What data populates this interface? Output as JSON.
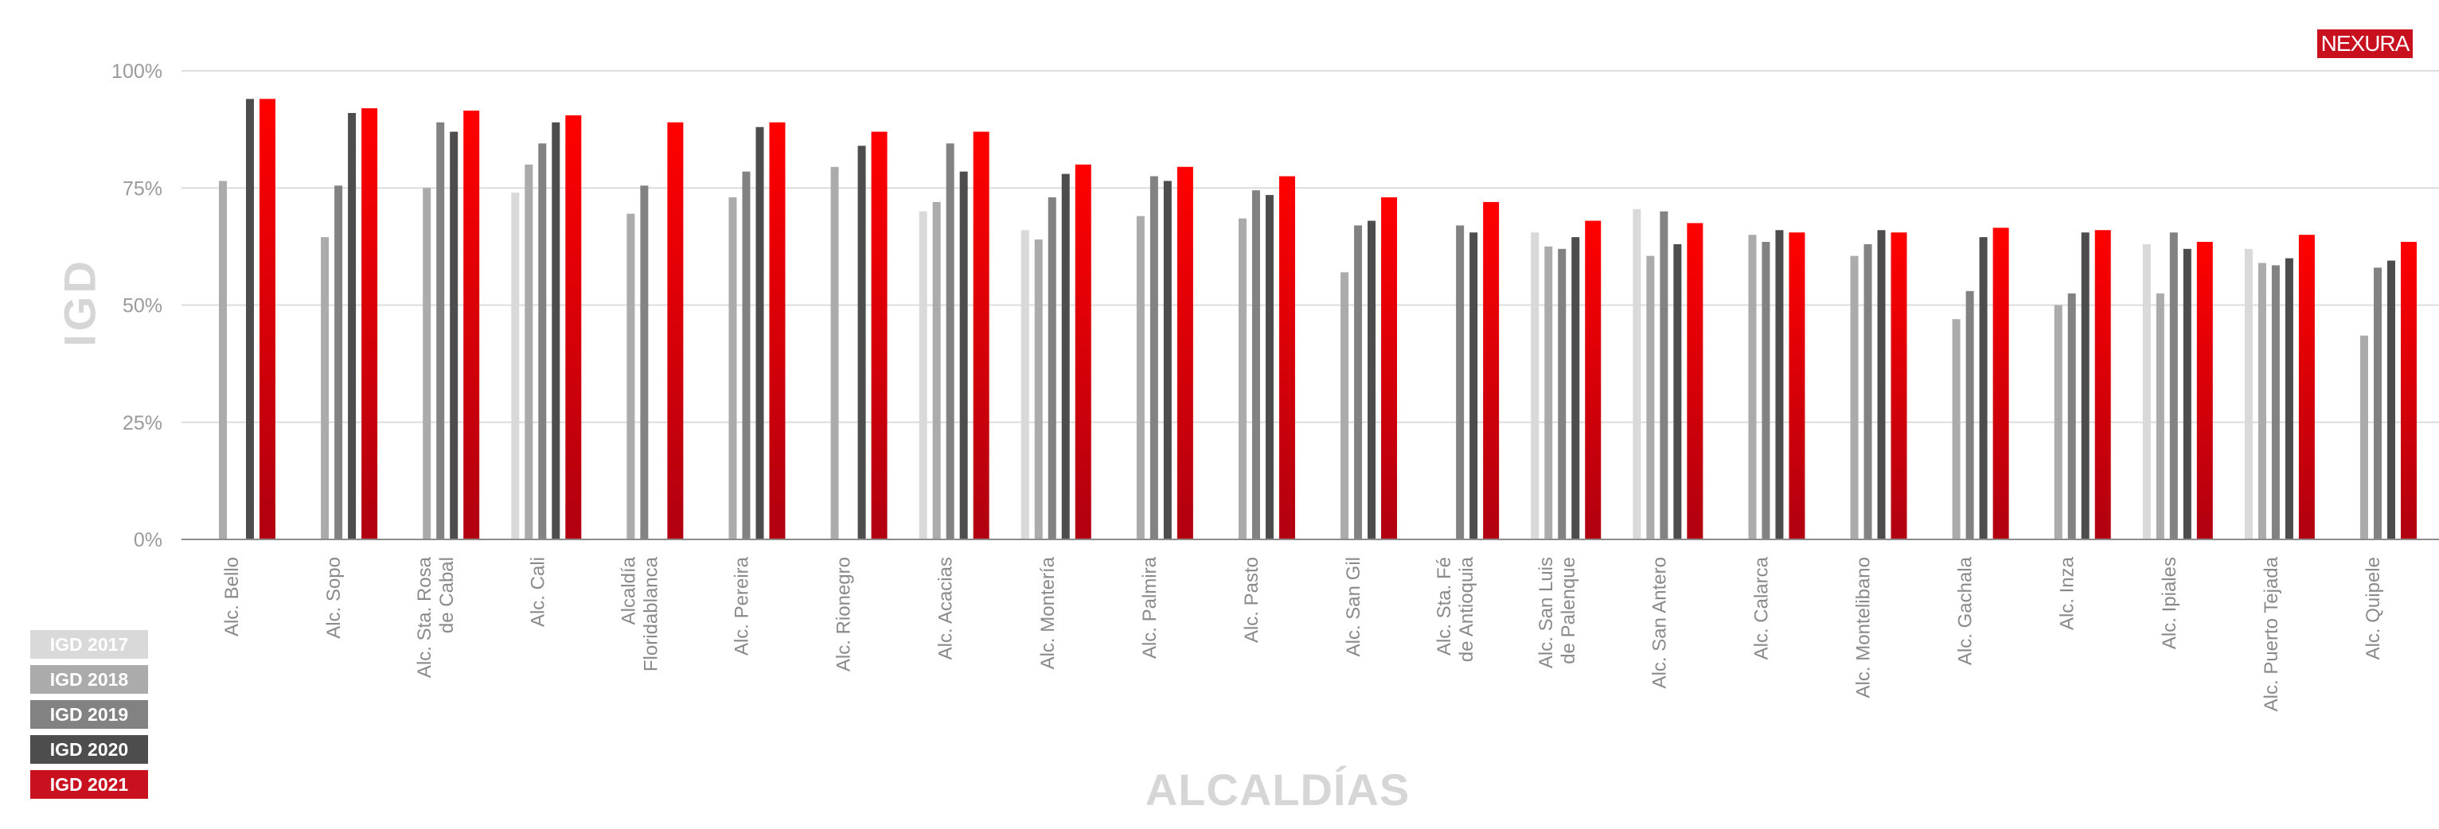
{
  "brand": {
    "logo_text": "NEXURA"
  },
  "chart_data": {
    "type": "bar",
    "title": "",
    "xlabel": "ALCALDÍAS",
    "ylabel": "IGD",
    "ylim": [
      0,
      100
    ],
    "yticks": [
      {
        "value": 0,
        "label": "0%"
      },
      {
        "value": 25,
        "label": "25%"
      },
      {
        "value": 50,
        "label": "50%"
      },
      {
        "value": 75,
        "label": "75%"
      },
      {
        "value": 100,
        "label": "100%"
      }
    ],
    "grid": true,
    "legend_position": "bottom-left",
    "categories": [
      [
        "Alc. Bello"
      ],
      [
        "Alc. Sopo"
      ],
      [
        "Alc. Sta. Rosa",
        "de Cabal"
      ],
      [
        "Alc. Cali"
      ],
      [
        "Alcaldía",
        "Floridablanca"
      ],
      [
        "Alc. Pereira"
      ],
      [
        "Alc. Rionegro"
      ],
      [
        "Alc. Acacias"
      ],
      [
        "Alc. Montería"
      ],
      [
        "Alc. Palmira"
      ],
      [
        "Alc. Pasto"
      ],
      [
        "Alc. San Gil"
      ],
      [
        "Alc. Sta. Fé",
        "de Antioquia"
      ],
      [
        "Alc. San Luis",
        "de Palenque"
      ],
      [
        "Alc. San Antero"
      ],
      [
        "Alc. Calarca"
      ],
      [
        "Alc. Montelibano"
      ],
      [
        "Alc. Gachala"
      ],
      [
        "Alc. Inza"
      ],
      [
        "Alc. Ipiales"
      ],
      [
        "Alc. Puerto Tejada"
      ],
      [
        "Alc. Quipele"
      ]
    ],
    "series": [
      {
        "name": "IGD 2017",
        "color": "#d9d9d9",
        "values": [
          null,
          null,
          null,
          74,
          null,
          null,
          null,
          70,
          66,
          null,
          null,
          null,
          null,
          65.5,
          70.5,
          null,
          null,
          null,
          null,
          63,
          62,
          null
        ]
      },
      {
        "name": "IGD 2018",
        "color": "#ababab",
        "values": [
          76.5,
          64.5,
          75,
          80,
          69.5,
          73,
          79.5,
          72,
          64,
          69,
          68.5,
          57,
          null,
          62.5,
          60.5,
          65,
          60.5,
          47,
          50,
          52.5,
          59,
          43.5
        ]
      },
      {
        "name": "IGD 2019",
        "color": "#828282",
        "values": [
          null,
          75.5,
          89,
          84.5,
          75.5,
          78.5,
          null,
          84.5,
          73,
          77.5,
          74.5,
          67,
          67,
          62,
          70,
          63.5,
          63,
          53,
          52.5,
          65.5,
          58.5,
          58
        ]
      },
      {
        "name": "IGD 2020",
        "color": "#4d4d4d",
        "values": [
          94,
          91,
          87,
          89,
          null,
          88,
          84,
          78.5,
          78,
          76.5,
          73.5,
          68,
          65.5,
          64.5,
          63,
          66,
          66,
          64.5,
          65.5,
          62,
          60,
          59.5
        ]
      },
      {
        "name": "IGD 2021",
        "color": "#e0000f",
        "values": [
          94,
          92,
          91.5,
          90.5,
          89,
          89,
          87,
          87,
          80,
          79.5,
          77.5,
          73,
          72,
          68,
          67.5,
          65.5,
          65.5,
          66.5,
          66,
          63.5,
          65,
          63.5
        ]
      }
    ]
  }
}
